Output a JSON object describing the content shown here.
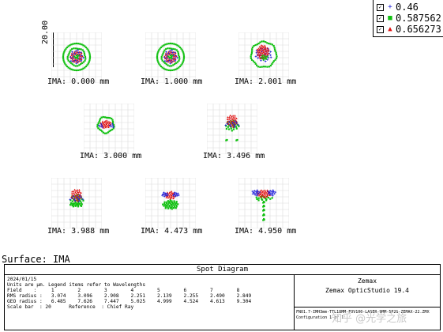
{
  "legend": {
    "items": [
      {
        "label": "0.46",
        "marker": "+",
        "color": "#1a1ad8"
      },
      {
        "label": "0.587562",
        "marker": "■",
        "color": "#10c010"
      },
      {
        "label": "0.656273",
        "marker": "▲",
        "color": "#e01010"
      }
    ]
  },
  "scale_label": "20.00",
  "spots": [
    {
      "ima": "IMA: 0.000 mm",
      "pattern": "ring"
    },
    {
      "ima": "IMA: 1.000 mm",
      "pattern": "ring"
    },
    {
      "ima": "IMA: 2.001 mm",
      "pattern": "ring-blob"
    },
    {
      "ima": "IMA: 3.000 mm",
      "pattern": "oval"
    },
    {
      "ima": "IMA: 3.496 mm",
      "pattern": "drop"
    },
    {
      "ima": "IMA: 3.988 mm",
      "pattern": "drop"
    },
    {
      "ima": "IMA: 4.473 mm",
      "pattern": "bowl"
    },
    {
      "ima": "IMA: 4.950 mm",
      "pattern": "comet"
    }
  ],
  "surface": "Surface: IMA",
  "panel": {
    "title": "Spot Diagram",
    "date": "2024/01/15",
    "units_note": "Units are µm. Legend items refer to Wavelengths",
    "field_line": "Field    :     1        2        3        4        5        6        7        8",
    "rms_line": "RMS radius :   3.074    3.096    2.908    2.251    2.139    2.255    2.490    2.849",
    "geo_line": "GEO radius :   6.485    7.626    7.447    5.025    4.999    4.524    4.613    9.304",
    "scale_line": "Scale bar  : 20      Reference  : Chief Ray",
    "brand": "Zemax",
    "product": "Zemax OpticStudio 19.4",
    "file_line": "FNO1.7-IMH3mm-TTL18MM-FOV100-LASER-9MM-5P2G-ZEMAX-22.ZMX",
    "config_line": "Configuration 1 of 1"
  },
  "watermark": "知乎 @光学之旅"
}
